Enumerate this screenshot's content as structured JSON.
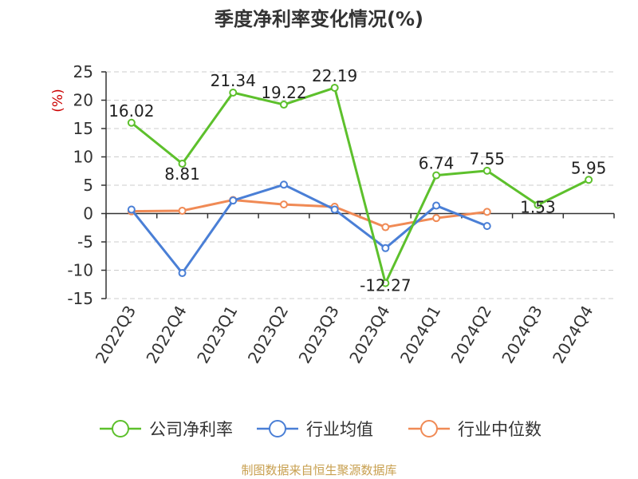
{
  "chart_data": {
    "type": "line",
    "title": "季度净利率变化情况(%)",
    "ylabel": "(%)",
    "xlabel": "",
    "categories": [
      "2022Q3",
      "2022Q4",
      "2023Q1",
      "2023Q2",
      "2023Q3",
      "2023Q4",
      "2024Q1",
      "2024Q2",
      "2024Q3",
      "2024Q4"
    ],
    "ylim": [
      -15,
      25
    ],
    "yticks": [
      25,
      20,
      15,
      10,
      5,
      0,
      -5,
      -10,
      -15
    ],
    "grid": true,
    "legend_position": "bottom",
    "series": [
      {
        "name": "公司净利率",
        "color": "#5dc02c",
        "values": [
          16.02,
          8.81,
          21.34,
          19.22,
          22.19,
          -12.27,
          6.74,
          7.55,
          1.53,
          5.95
        ],
        "labels": [
          "16.02",
          "8.81",
          "21.34",
          "19.22",
          "22.19",
          "-12.27",
          "6.74",
          "7.55",
          "1.53",
          "5.95"
        ]
      },
      {
        "name": "行业均值",
        "color": "#4a7fd6",
        "values": [
          0.7,
          -10.5,
          2.3,
          5.1,
          0.7,
          -6.1,
          1.4,
          -2.2,
          null,
          null
        ]
      },
      {
        "name": "行业中位数",
        "color": "#f08a55",
        "values": [
          0.4,
          0.5,
          2.4,
          1.6,
          1.2,
          -2.4,
          -0.8,
          0.3,
          null,
          null
        ]
      }
    ]
  },
  "footer": {
    "source": "制图数据来自恒生聚源数据库"
  }
}
